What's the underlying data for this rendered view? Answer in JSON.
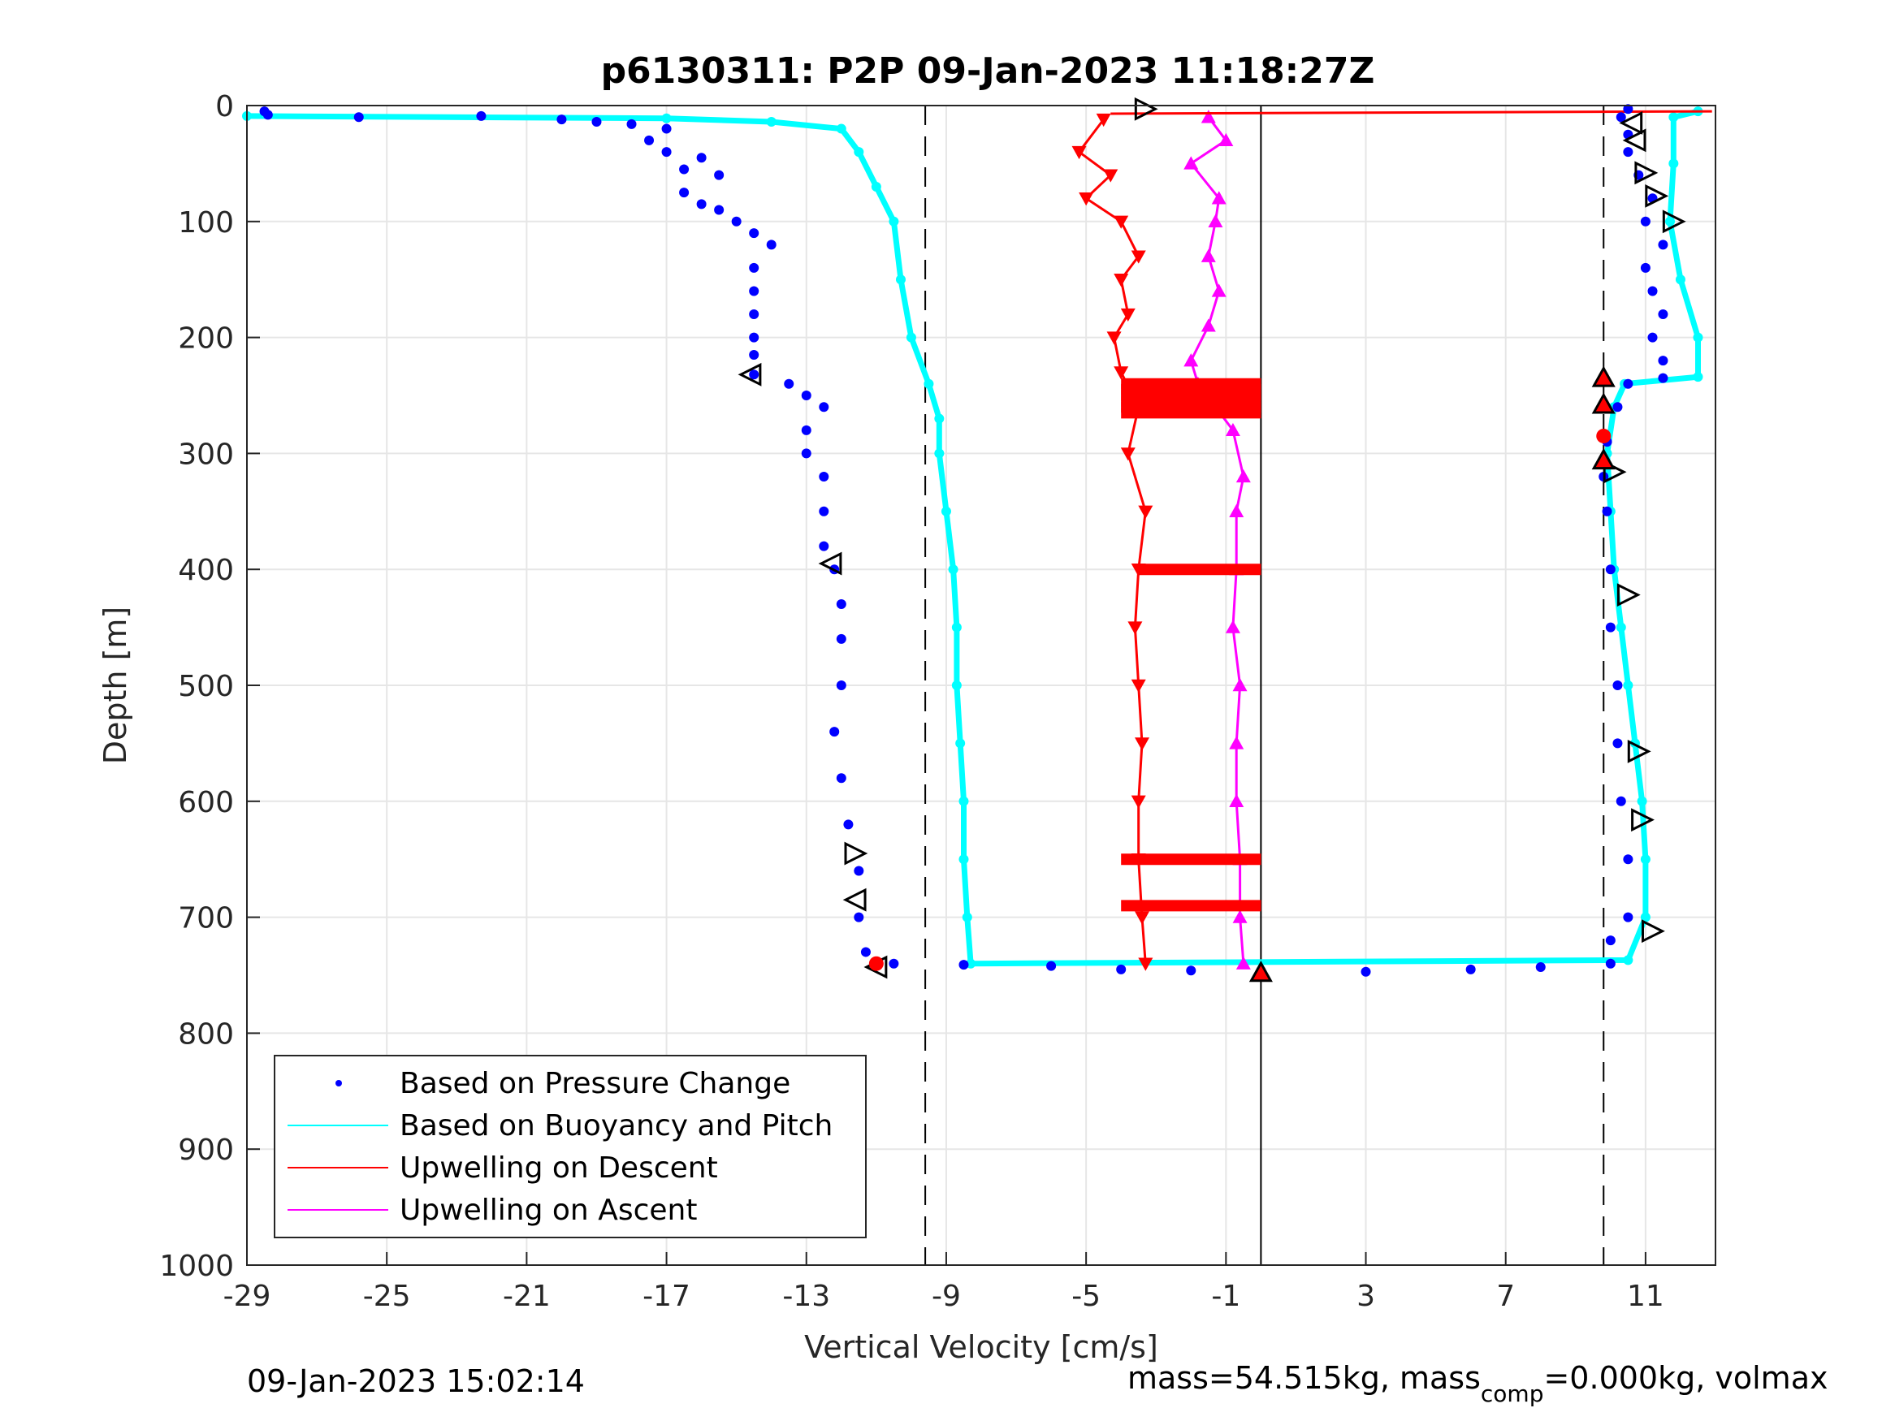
{
  "chart_data": {
    "type": "scatter",
    "title": "p6130311: P2P 09-Jan-2023 11:18:27Z",
    "xlabel": "Vertical Velocity [cm/s]",
    "ylabel": "Depth [m]",
    "xlim": [
      -29,
      13
    ],
    "ylim": [
      0,
      1000
    ],
    "y_reversed": true,
    "grid": true,
    "xticks": [
      -29,
      -25,
      -21,
      -17,
      -13,
      -9,
      -5,
      -1,
      3,
      7,
      11
    ],
    "yticks": [
      0,
      100,
      200,
      300,
      400,
      500,
      600,
      700,
      800,
      900,
      1000
    ],
    "ref_lines": {
      "dashed": [
        -9.6,
        9.8
      ],
      "solid": [
        0
      ]
    },
    "legend_position": "bottom-left",
    "series": [
      {
        "name": "Based on Pressure Change",
        "style": "dots",
        "color": "#0000ff",
        "descent": [
          [
            -28.5,
            5
          ],
          [
            -28.4,
            8
          ],
          [
            -25.8,
            10
          ],
          [
            -22.3,
            9
          ],
          [
            -20,
            12
          ],
          [
            -19,
            14
          ],
          [
            -18,
            16
          ],
          [
            -17,
            20
          ],
          [
            -17.5,
            30
          ],
          [
            -17,
            40
          ],
          [
            -16,
            45
          ],
          [
            -16.5,
            55
          ],
          [
            -15.5,
            60
          ],
          [
            -16.5,
            75
          ],
          [
            -16,
            85
          ],
          [
            -15.5,
            90
          ],
          [
            -15,
            100
          ],
          [
            -14.5,
            110
          ],
          [
            -14,
            120
          ],
          [
            -14.5,
            140
          ],
          [
            -14.5,
            160
          ],
          [
            -14.5,
            180
          ],
          [
            -14.5,
            200
          ],
          [
            -14.5,
            215
          ],
          [
            -14.5,
            232
          ],
          [
            -13.5,
            240
          ],
          [
            -13,
            250
          ],
          [
            -12.5,
            260
          ],
          [
            -13,
            280
          ],
          [
            -13,
            300
          ],
          [
            -12.5,
            320
          ],
          [
            -12.5,
            350
          ],
          [
            -12.5,
            380
          ],
          [
            -12.2,
            400
          ],
          [
            -12,
            430
          ],
          [
            -12,
            460
          ],
          [
            -12,
            500
          ],
          [
            -12.2,
            540
          ],
          [
            -12,
            580
          ],
          [
            -11.8,
            620
          ],
          [
            -11.5,
            660
          ],
          [
            -11.5,
            700
          ],
          [
            -11.3,
            730
          ],
          [
            -11,
            740
          ]
        ],
        "bottom": [
          [
            -10.5,
            740
          ],
          [
            -8.5,
            741
          ],
          [
            -6,
            742
          ],
          [
            -4,
            745
          ],
          [
            -2,
            746
          ],
          [
            0,
            746
          ],
          [
            3,
            747
          ],
          [
            6,
            745
          ],
          [
            8,
            743
          ],
          [
            10,
            740
          ]
        ],
        "ascent": [
          [
            10,
            720
          ],
          [
            10.5,
            700
          ],
          [
            10.5,
            650
          ],
          [
            10.3,
            600
          ],
          [
            10.2,
            550
          ],
          [
            10.2,
            500
          ],
          [
            10,
            450
          ],
          [
            10,
            400
          ],
          [
            9.9,
            350
          ],
          [
            9.8,
            320
          ],
          [
            9.9,
            290
          ],
          [
            10.2,
            260
          ],
          [
            10.5,
            240
          ],
          [
            11.5,
            235
          ],
          [
            11.5,
            220
          ],
          [
            11.2,
            200
          ],
          [
            11.5,
            180
          ],
          [
            11.2,
            160
          ],
          [
            11,
            140
          ],
          [
            11.5,
            120
          ],
          [
            11,
            100
          ],
          [
            11.2,
            80
          ],
          [
            10.8,
            60
          ],
          [
            10.5,
            40
          ],
          [
            10.5,
            25
          ],
          [
            10.3,
            10
          ],
          [
            10.5,
            3
          ]
        ]
      },
      {
        "name": "Based on Buoyancy and Pitch",
        "style": "line",
        "color": "#00ffff",
        "descent": [
          [
            -29,
            9
          ],
          [
            -17,
            11
          ],
          [
            -14,
            14
          ],
          [
            -12,
            20
          ],
          [
            -11.5,
            40
          ],
          [
            -11,
            70
          ],
          [
            -10.5,
            100
          ],
          [
            -10.3,
            150
          ],
          [
            -10,
            200
          ],
          [
            -9.5,
            240
          ],
          [
            -9.2,
            270
          ],
          [
            -9.2,
            300
          ],
          [
            -9,
            350
          ],
          [
            -8.8,
            400
          ],
          [
            -8.7,
            450
          ],
          [
            -8.7,
            500
          ],
          [
            -8.6,
            550
          ],
          [
            -8.5,
            600
          ],
          [
            -8.5,
            650
          ],
          [
            -8.4,
            700
          ],
          [
            -8.3,
            740
          ]
        ],
        "bottom": [
          [
            -8.3,
            740
          ],
          [
            10.5,
            737
          ]
        ],
        "ascent": [
          [
            10.5,
            737
          ],
          [
            11,
            700
          ],
          [
            11,
            650
          ],
          [
            10.9,
            600
          ],
          [
            10.7,
            550
          ],
          [
            10.5,
            500
          ],
          [
            10.3,
            450
          ],
          [
            10.1,
            400
          ],
          [
            10,
            350
          ],
          [
            9.9,
            300
          ],
          [
            10.1,
            260
          ],
          [
            10.4,
            240
          ],
          [
            12.5,
            234
          ],
          [
            12.5,
            200
          ],
          [
            12,
            150
          ],
          [
            11.7,
            100
          ],
          [
            11.8,
            50
          ],
          [
            11.8,
            10
          ],
          [
            12.5,
            5
          ]
        ]
      },
      {
        "name": "Upwelling on Descent",
        "style": "triangle-down",
        "color": "#ff0000",
        "descent": [
          [
            -4.5,
            12
          ],
          [
            -5.2,
            40
          ],
          [
            -4.3,
            60
          ],
          [
            -5,
            80
          ],
          [
            -4,
            100
          ],
          [
            -3.5,
            130
          ],
          [
            -4,
            150
          ],
          [
            -3.8,
            180
          ],
          [
            -4.2,
            200
          ],
          [
            -4,
            230
          ],
          [
            -3.5,
            260
          ],
          [
            -3.8,
            300
          ],
          [
            -3.3,
            350
          ],
          [
            -3.5,
            400
          ],
          [
            -3.6,
            450
          ],
          [
            -3.5,
            500
          ],
          [
            -3.4,
            550
          ],
          [
            -3.5,
            600
          ],
          [
            -3.5,
            650
          ],
          [
            -3.4,
            700
          ],
          [
            -3.3,
            740
          ]
        ],
        "bands": [
          [
            -4,
            0,
            240
          ],
          [
            -4,
            0,
            245
          ],
          [
            -4,
            0,
            250
          ],
          [
            -4,
            0,
            255
          ],
          [
            -4,
            0,
            260
          ],
          [
            -4,
            0,
            265
          ],
          [
            -3.5,
            0,
            400
          ],
          [
            -4,
            0,
            650
          ],
          [
            -4,
            0,
            690
          ]
        ]
      },
      {
        "name": "Upwelling on Ascent",
        "style": "triangle-up",
        "color": "#ff00ff",
        "ascent": [
          [
            -1.5,
            10
          ],
          [
            -1,
            30
          ],
          [
            -2,
            50
          ],
          [
            -1.2,
            80
          ],
          [
            -1.3,
            100
          ],
          [
            -1.5,
            130
          ],
          [
            -1.2,
            160
          ],
          [
            -1.5,
            190
          ],
          [
            -2,
            220
          ],
          [
            -1.8,
            240
          ],
          [
            -0.8,
            280
          ],
          [
            -0.5,
            320
          ],
          [
            -0.7,
            350
          ],
          [
            -0.7,
            400
          ],
          [
            -0.8,
            450
          ],
          [
            -0.6,
            500
          ],
          [
            -0.7,
            550
          ],
          [
            -0.7,
            600
          ],
          [
            -0.6,
            650
          ],
          [
            -0.6,
            700
          ],
          [
            -0.5,
            740
          ]
        ]
      }
    ],
    "markers": {
      "open_triangles": [
        [
          -3.3,
          3,
          "right"
        ],
        [
          -14.6,
          232,
          "left"
        ],
        [
          -12.3,
          395,
          "left"
        ],
        [
          -11.6,
          645,
          "right"
        ],
        [
          -11.6,
          685,
          "left"
        ],
        [
          -11,
          743,
          "left"
        ],
        [
          10.6,
          15,
          "left"
        ],
        [
          10.7,
          30,
          "left"
        ],
        [
          11.0,
          58,
          "right"
        ],
        [
          11.3,
          78,
          "right"
        ],
        [
          11.8,
          100,
          "right"
        ],
        [
          10.1,
          316,
          "right"
        ],
        [
          10.5,
          422,
          "right"
        ],
        [
          10.8,
          557,
          "right"
        ],
        [
          10.9,
          616,
          "right"
        ],
        [
          11.2,
          712,
          "right"
        ]
      ],
      "red_triangles": [
        [
          9.8,
          235
        ],
        [
          9.8,
          258
        ],
        [
          9.8,
          306
        ],
        [
          0,
          748
        ]
      ],
      "red_circles": [
        [
          -11,
          740
        ],
        [
          9.8,
          285
        ]
      ]
    }
  },
  "footer": {
    "timestamp": "09-Jan-2023 15:02:14",
    "mass_prefix": "mass=54.515kg, mass",
    "mass_sub": "comp",
    "mass_suffix": "=0.000kg, volmax"
  }
}
